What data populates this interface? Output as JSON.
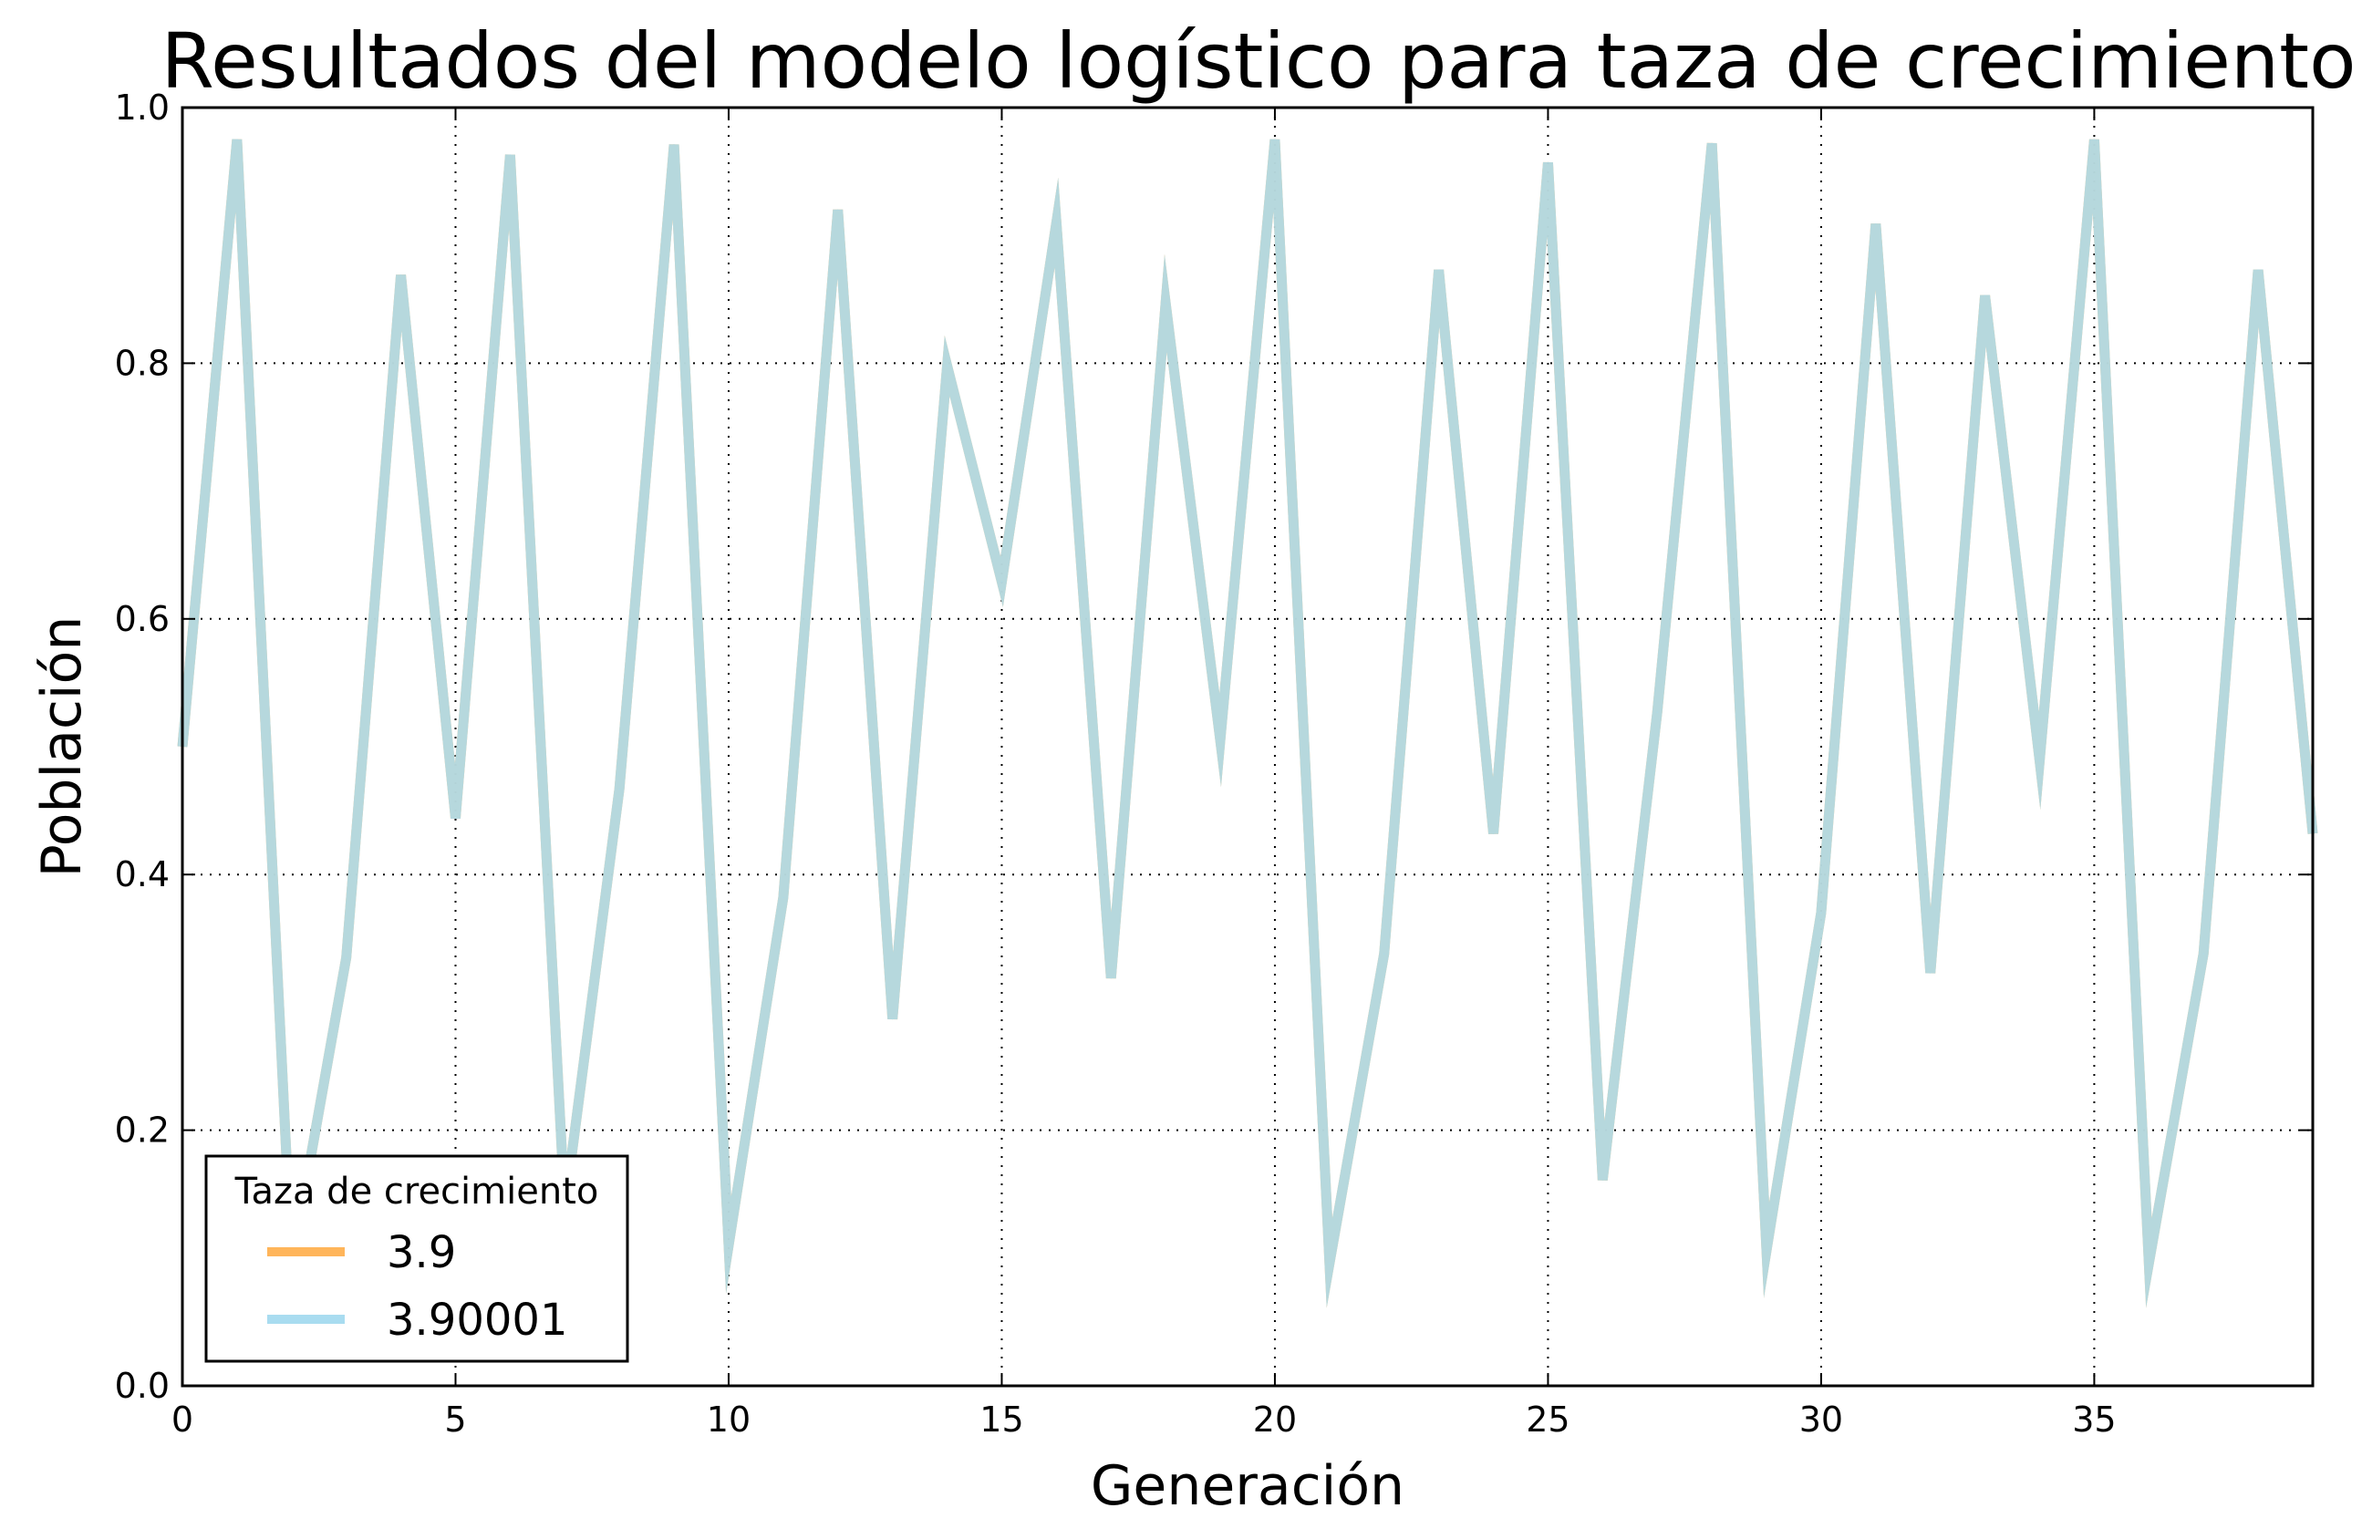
{
  "chart_data": {
    "type": "line",
    "title": "Resultados del modelo logístico para taza de crecimiento",
    "xlabel": "Generación",
    "ylabel": "Población",
    "xlim": [
      0,
      39
    ],
    "ylim": [
      0.0,
      1.0
    ],
    "xticks": [
      0,
      5,
      10,
      15,
      20,
      25,
      30,
      35
    ],
    "yticks": [
      0.0,
      0.2,
      0.4,
      0.6,
      0.8,
      1.0
    ],
    "xtick_labels": [
      "0",
      "5",
      "10",
      "15",
      "20",
      "25",
      "30",
      "35"
    ],
    "ytick_labels": [
      "0.0",
      "0.2",
      "0.4",
      "0.6",
      "0.8",
      "1.0"
    ],
    "grid": true,
    "grid_style": "dotted",
    "legend": {
      "title": "Taza de crecimiento",
      "position": "lower-left"
    },
    "x": [
      0,
      1,
      2,
      3,
      4,
      5,
      6,
      7,
      8,
      9,
      10,
      11,
      12,
      13,
      14,
      15,
      16,
      17,
      18,
      19,
      20,
      21,
      22,
      23,
      24,
      25,
      26,
      27,
      28,
      29,
      30,
      31,
      32,
      33,
      34,
      35,
      36,
      37,
      38,
      39
    ],
    "series": [
      {
        "name": "3.9",
        "color": "#ffb55a",
        "values": [
          0.5,
          0.975,
          0.095,
          0.335,
          0.869,
          0.444,
          0.963,
          0.139,
          0.467,
          0.971,
          0.11,
          0.382,
          0.92,
          0.287,
          0.798,
          0.629,
          0.91,
          0.319,
          0.847,
          0.505,
          0.975,
          0.096,
          0.338,
          0.873,
          0.432,
          0.957,
          0.161,
          0.527,
          0.972,
          0.106,
          0.37,
          0.909,
          0.323,
          0.853,
          0.489,
          0.975,
          0.096,
          0.338,
          0.873,
          0.432
        ]
      },
      {
        "name": "3.90001",
        "color": "#a9dcf0",
        "values": [
          0.5,
          0.975,
          0.095,
          0.335,
          0.869,
          0.444,
          0.963,
          0.139,
          0.467,
          0.971,
          0.11,
          0.382,
          0.92,
          0.287,
          0.798,
          0.629,
          0.91,
          0.319,
          0.847,
          0.505,
          0.975,
          0.096,
          0.338,
          0.873,
          0.432,
          0.957,
          0.161,
          0.527,
          0.972,
          0.106,
          0.37,
          0.909,
          0.323,
          0.853,
          0.489,
          0.975,
          0.096,
          0.338,
          0.873,
          0.432
        ]
      }
    ]
  }
}
